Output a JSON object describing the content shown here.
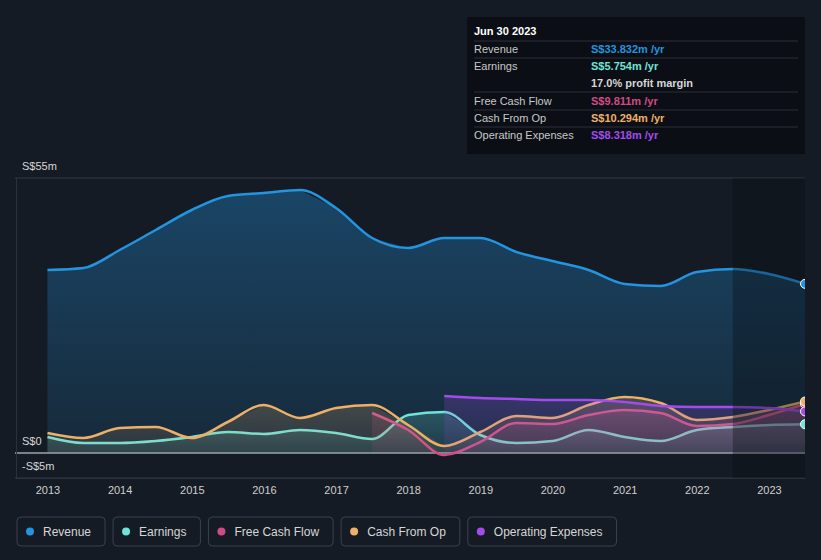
{
  "chart_data": {
    "type": "line",
    "x": [
      2013,
      2013.5,
      2014,
      2014.5,
      2015,
      2015.5,
      2016,
      2016.5,
      2017,
      2017.5,
      2018,
      2018.5,
      2019,
      2019.5,
      2020,
      2020.5,
      2021,
      2021.5,
      2022,
      2022.5,
      2023,
      2023.5
    ],
    "xlim": [
      2012.55,
      2023.5
    ],
    "xticks": [
      2013,
      2014,
      2015,
      2016,
      2017,
      2018,
      2019,
      2020,
      2021,
      2022,
      2023
    ],
    "ylim": [
      -5,
      55
    ],
    "yticks": [
      {
        "value": 55,
        "label": "S$55m"
      },
      {
        "value": 0,
        "label": "S$0"
      },
      {
        "value": -5,
        "label": "-S$5m"
      }
    ],
    "grid": true,
    "legend": "bottom",
    "highlight_x": [
      2022.5,
      2023.5
    ],
    "series": [
      {
        "name": "Revenue",
        "color": "#2394df",
        "values": [
          36.6,
          37,
          40.6,
          44.6,
          48.6,
          51.4,
          52,
          52.6,
          49,
          43,
          41,
          43,
          43,
          40.2,
          38.4,
          36.6,
          33.8,
          33.4,
          36.2,
          36.8,
          35.8,
          33.832
        ]
      },
      {
        "name": "Earnings",
        "color": "#6fe3d8",
        "values": [
          3.2,
          2,
          2,
          2.4,
          3.2,
          4.2,
          3.8,
          4.6,
          4,
          2.8,
          7.6,
          8.2,
          3.6,
          2,
          2.4,
          4.6,
          3.2,
          2.4,
          4.6,
          5.2,
          5.6,
          5.754
        ]
      },
      {
        "name": "Free Cash Flow",
        "color": "#d04a85",
        "values": [
          null,
          null,
          null,
          null,
          null,
          null,
          null,
          null,
          null,
          8,
          4.6,
          -0.4,
          2.2,
          6,
          5.8,
          7.6,
          8.6,
          8,
          5.4,
          5.8,
          7.6,
          9.811
        ]
      },
      {
        "name": "Cash From Op",
        "color": "#eeb067",
        "values": [
          4,
          3,
          5,
          5.2,
          3,
          6.2,
          9.6,
          7,
          9,
          9.6,
          5.6,
          1.4,
          4.2,
          7.4,
          7,
          9.6,
          11.2,
          10,
          6.6,
          7.2,
          8.6,
          10.294
        ]
      },
      {
        "name": "Operating Expenses",
        "color": "#a24ced",
        "values": [
          null,
          null,
          null,
          null,
          null,
          null,
          null,
          null,
          null,
          null,
          null,
          11.4,
          11,
          10.8,
          10.6,
          10.6,
          10.2,
          9.4,
          9.2,
          9.2,
          9,
          8.318
        ]
      }
    ]
  },
  "tooltip": {
    "title": "Jun 30 2023",
    "rows": [
      {
        "label": "Revenue",
        "value": "S$33.832m /yr",
        "color": "#2394df"
      },
      {
        "label": "Earnings",
        "value": "S$5.754m /yr",
        "color": "#6fe3d8"
      },
      {
        "label": "Free Cash Flow",
        "value": "S$9.811m /yr",
        "color": "#d04a85"
      },
      {
        "label": "Cash From Op",
        "value": "S$10.294m /yr",
        "color": "#eeb067"
      },
      {
        "label": "Operating Expenses",
        "value": "S$8.318m /yr",
        "color": "#a24ced"
      }
    ],
    "note": "17.0% profit margin"
  }
}
